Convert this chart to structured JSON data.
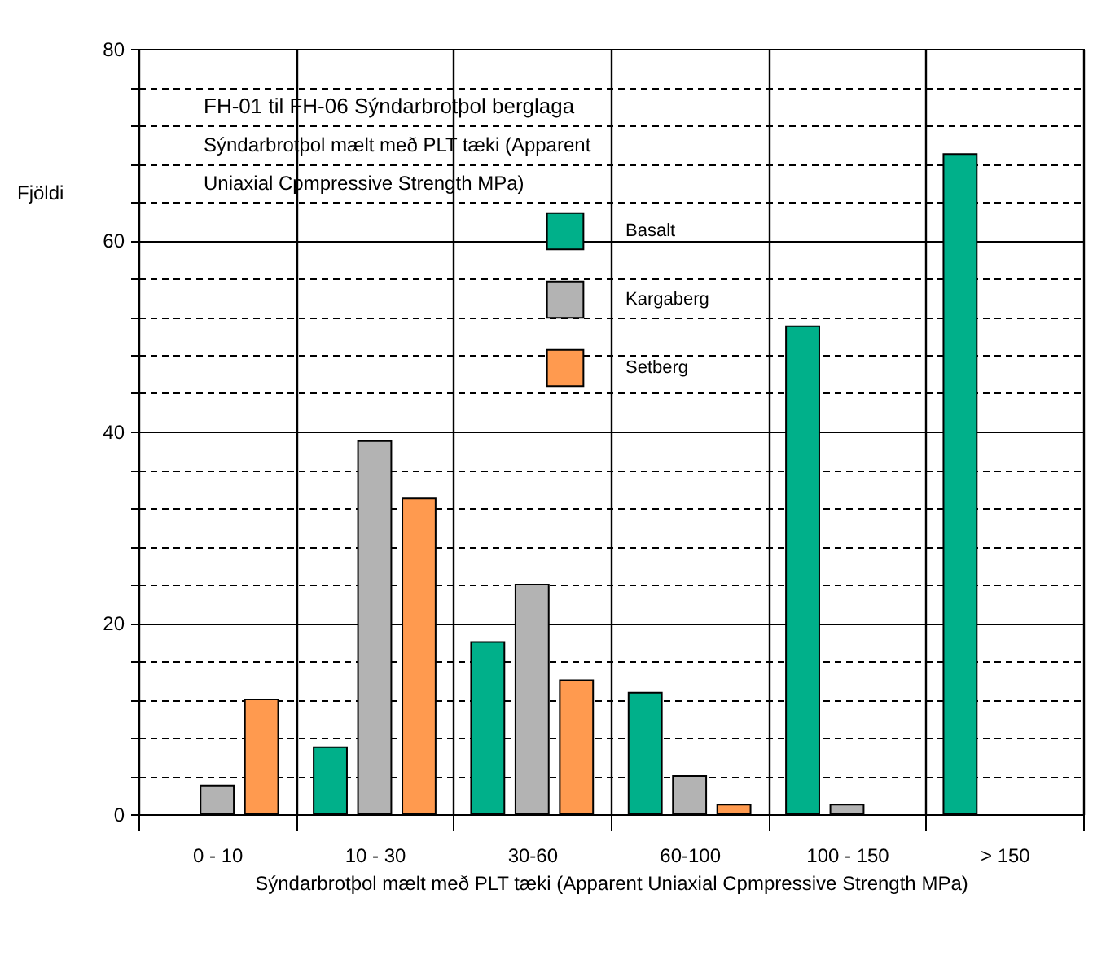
{
  "chart_data": {
    "type": "bar",
    "title": "FH-01 til FH-06  Sýndarbrotþol berglaga",
    "subtitle": "Sýndarbrotþol mælt með PLT tæki (Apparent Uniaxial Cpmpressive Strength MPa)",
    "xlabel": "Sýndarbrotþol mælt með PLT tæki (Apparent Uniaxial Cpmpressive Strength MPa)",
    "ylabel": "Fjöldi",
    "categories": [
      "0 - 10",
      "10 - 30",
      "30-60",
      "60-100",
      "100 - 150",
      "> 150"
    ],
    "series": [
      {
        "name": "Basalt",
        "color": "#00b08a",
        "values": [
          null,
          7,
          18,
          12.7,
          51,
          69
        ]
      },
      {
        "name": "Kargaberg",
        "color": "#b3b3b3",
        "values": [
          3,
          39,
          24,
          4,
          1,
          null
        ]
      },
      {
        "name": "Setberg",
        "color": "#ff9a4f",
        "values": [
          12,
          33,
          14,
          1,
          null,
          null
        ]
      }
    ],
    "ylim": [
      0,
      80
    ],
    "yticks": [
      0,
      {
        "value": 4,
        "label": null
      },
      {
        "value": 8,
        "label": null
      },
      {
        "value": 12,
        "label": null
      },
      {
        "value": 16,
        "label": null
      },
      20,
      {
        "value": 24,
        "label": null
      },
      {
        "value": 28,
        "label": null
      },
      {
        "value": 32,
        "label": null
      },
      {
        "value": 36,
        "label": null
      },
      40,
      {
        "value": 44,
        "label": null
      },
      {
        "value": 48,
        "label": null
      },
      {
        "value": 52,
        "label": null
      },
      {
        "value": 56,
        "label": null
      },
      60,
      {
        "value": 64,
        "label": null
      },
      {
        "value": 68,
        "label": null
      },
      {
        "value": 72,
        "label": null
      },
      {
        "value": 76,
        "label": null
      },
      80
    ],
    "grid": true,
    "legend": "top"
  }
}
